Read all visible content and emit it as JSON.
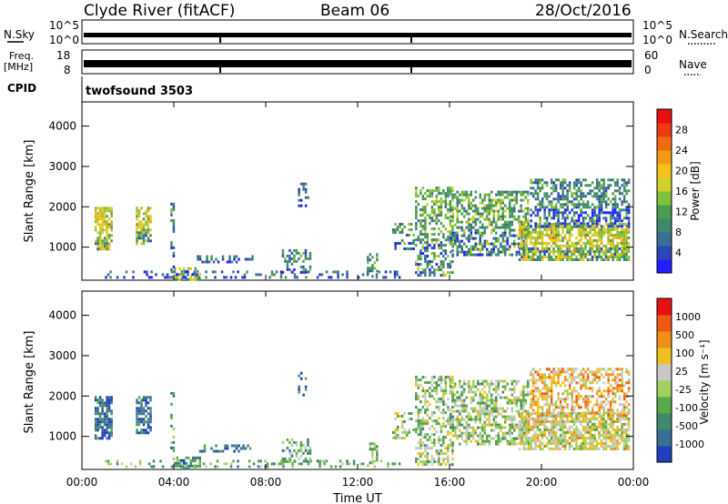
{
  "header": {
    "station": "Clyde River (fitACF)",
    "beam": "Beam 06",
    "date": "28/Oct/2016"
  },
  "top_panels": {
    "nsky_label": "N.Sky",
    "nsky_ticks": [
      "10^5",
      "10^0"
    ],
    "nsearch_label": "N.Search",
    "nsearch_ticks": [
      "10^5",
      "10^0"
    ],
    "freq_label_line1": "Freq.",
    "freq_label_line2": "[MHz]",
    "freq_ticks": [
      "18",
      "8"
    ],
    "nave_label": "Nave",
    "nave_ticks": [
      "60",
      "0"
    ],
    "cpid_label": "CPID",
    "cpid_value": "twofsound 3503"
  },
  "chart_data": [
    {
      "type": "heatmap",
      "title": "",
      "xlabel": "Time UT",
      "ylabel": "Slant Range [km]",
      "x_ticks": [
        "00:00",
        "04:00",
        "08:00",
        "12:00",
        "16:00",
        "20:00",
        "00:00"
      ],
      "xlim_hours": [
        0,
        24
      ],
      "y_ticks": [
        1000,
        2000,
        3000,
        4000
      ],
      "ylim": [
        180,
        4600
      ],
      "colorbar": {
        "label": "Power [dB]",
        "ticks": [
          "4",
          "8",
          "12",
          "16",
          "20",
          "24",
          "28"
        ],
        "colors": [
          "#1f1fff",
          "#2e45b8",
          "#3a6e96",
          "#3f8a6b",
          "#4b9c4e",
          "#7fc13a",
          "#cfd22d",
          "#f0c419",
          "#f39a14",
          "#f06a12",
          "#ee3a12",
          "#e81010"
        ]
      }
    },
    {
      "type": "heatmap",
      "title": "",
      "xlabel": "Time UT",
      "ylabel": "Slant Range [km]",
      "x_ticks": [
        "00:00",
        "04:00",
        "08:00",
        "12:00",
        "16:00",
        "20:00",
        "00:00"
      ],
      "xlim_hours": [
        0,
        24
      ],
      "y_ticks": [
        1000,
        2000,
        3000,
        4000
      ],
      "ylim": [
        180,
        4600
      ],
      "colorbar": {
        "label": "Velocity [m s⁻¹]",
        "ticks": [
          "1000",
          "500",
          "100",
          "25",
          "-25",
          "-100",
          "-500",
          "-1000"
        ],
        "colors": [
          "#1f3fbf",
          "#3a6e96",
          "#3f8a6b",
          "#5aa84a",
          "#a0d060",
          "#c8c8c8",
          "#f0c020",
          "#f09018",
          "#ee5a14",
          "#e81010"
        ]
      }
    }
  ],
  "scatter_regions": [
    {
      "t0": 0.55,
      "t1": 1.35,
      "r0": 900,
      "r1": 2000,
      "p": 6,
      "v": 1,
      "d": 0.75
    },
    {
      "t0": 2.35,
      "t1": 3.0,
      "r0": 1050,
      "r1": 2000,
      "p": 6,
      "v": 1,
      "d": 0.7
    },
    {
      "t0": 3.85,
      "t1": 4.05,
      "r0": 400,
      "r1": 2100,
      "p": 3,
      "v": 2,
      "d": 0.4
    },
    {
      "t0": 4.0,
      "t1": 5.2,
      "r0": 190,
      "r1": 500,
      "p": 5,
      "v": 2,
      "d": 0.65
    },
    {
      "t0": 1.0,
      "t1": 14.0,
      "r0": 190,
      "r1": 420,
      "p": 2,
      "v": 3,
      "d": 0.25
    },
    {
      "t0": 5.0,
      "t1": 7.5,
      "r0": 600,
      "r1": 800,
      "p": 2,
      "v": 1,
      "d": 0.35
    },
    {
      "t0": 8.7,
      "t1": 10.0,
      "r0": 350,
      "r1": 950,
      "p": 3,
      "v": 3,
      "d": 0.45
    },
    {
      "t0": 9.4,
      "t1": 9.9,
      "r0": 2000,
      "r1": 2600,
      "p": 2,
      "v": 1,
      "d": 0.3
    },
    {
      "t0": 12.4,
      "t1": 12.9,
      "r0": 250,
      "r1": 850,
      "p": 4,
      "v": 4,
      "d": 0.45
    },
    {
      "t0": 13.5,
      "t1": 14.5,
      "r0": 900,
      "r1": 1600,
      "p": 3,
      "v": 4,
      "d": 0.3
    },
    {
      "t0": 14.5,
      "t1": 16.2,
      "r0": 250,
      "r1": 2500,
      "p": 4,
      "v": 4,
      "d": 0.5
    },
    {
      "t0": 16.0,
      "t1": 19.5,
      "r0": 800,
      "r1": 2400,
      "p": 4,
      "v": 4,
      "d": 0.55
    },
    {
      "t0": 19.0,
      "t1": 23.9,
      "r0": 650,
      "r1": 1600,
      "p": 6,
      "v": 5,
      "d": 0.75
    },
    {
      "t0": 19.5,
      "t1": 23.9,
      "r0": 1500,
      "r1": 2700,
      "p": 3,
      "v": 6,
      "d": 0.55
    }
  ]
}
